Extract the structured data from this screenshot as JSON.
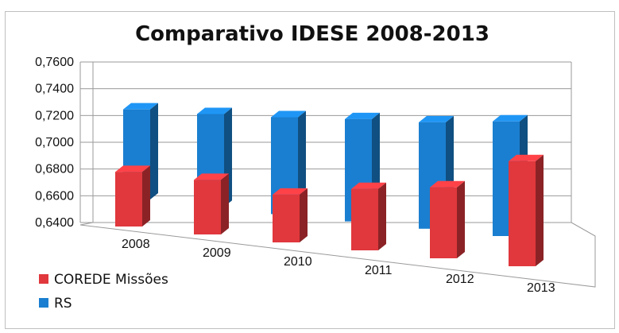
{
  "chart_data": {
    "type": "bar",
    "title": "Comparativo IDESE 2008-2013",
    "categories": [
      "2008",
      "2009",
      "2010",
      "2011",
      "2012",
      "2013"
    ],
    "series": [
      {
        "name": "COREDE Missões",
        "values": [
          0.68,
          0.68,
          0.675,
          0.685,
          0.692,
          0.717
        ]
      },
      {
        "name": "RS",
        "values": [
          0.706,
          0.708,
          0.711,
          0.715,
          0.718,
          0.724
        ]
      }
    ],
    "yticks": [
      "0,6400",
      "0,6600",
      "0,6800",
      "0,7000",
      "0,7200",
      "0,7400",
      "0,7600"
    ],
    "ylim": [
      0.64,
      0.76
    ],
    "grid": true,
    "legend_position": "bottom-left",
    "colors": {
      "COREDE Missões": "#e0383d",
      "RS": "#1a7fd0"
    }
  }
}
